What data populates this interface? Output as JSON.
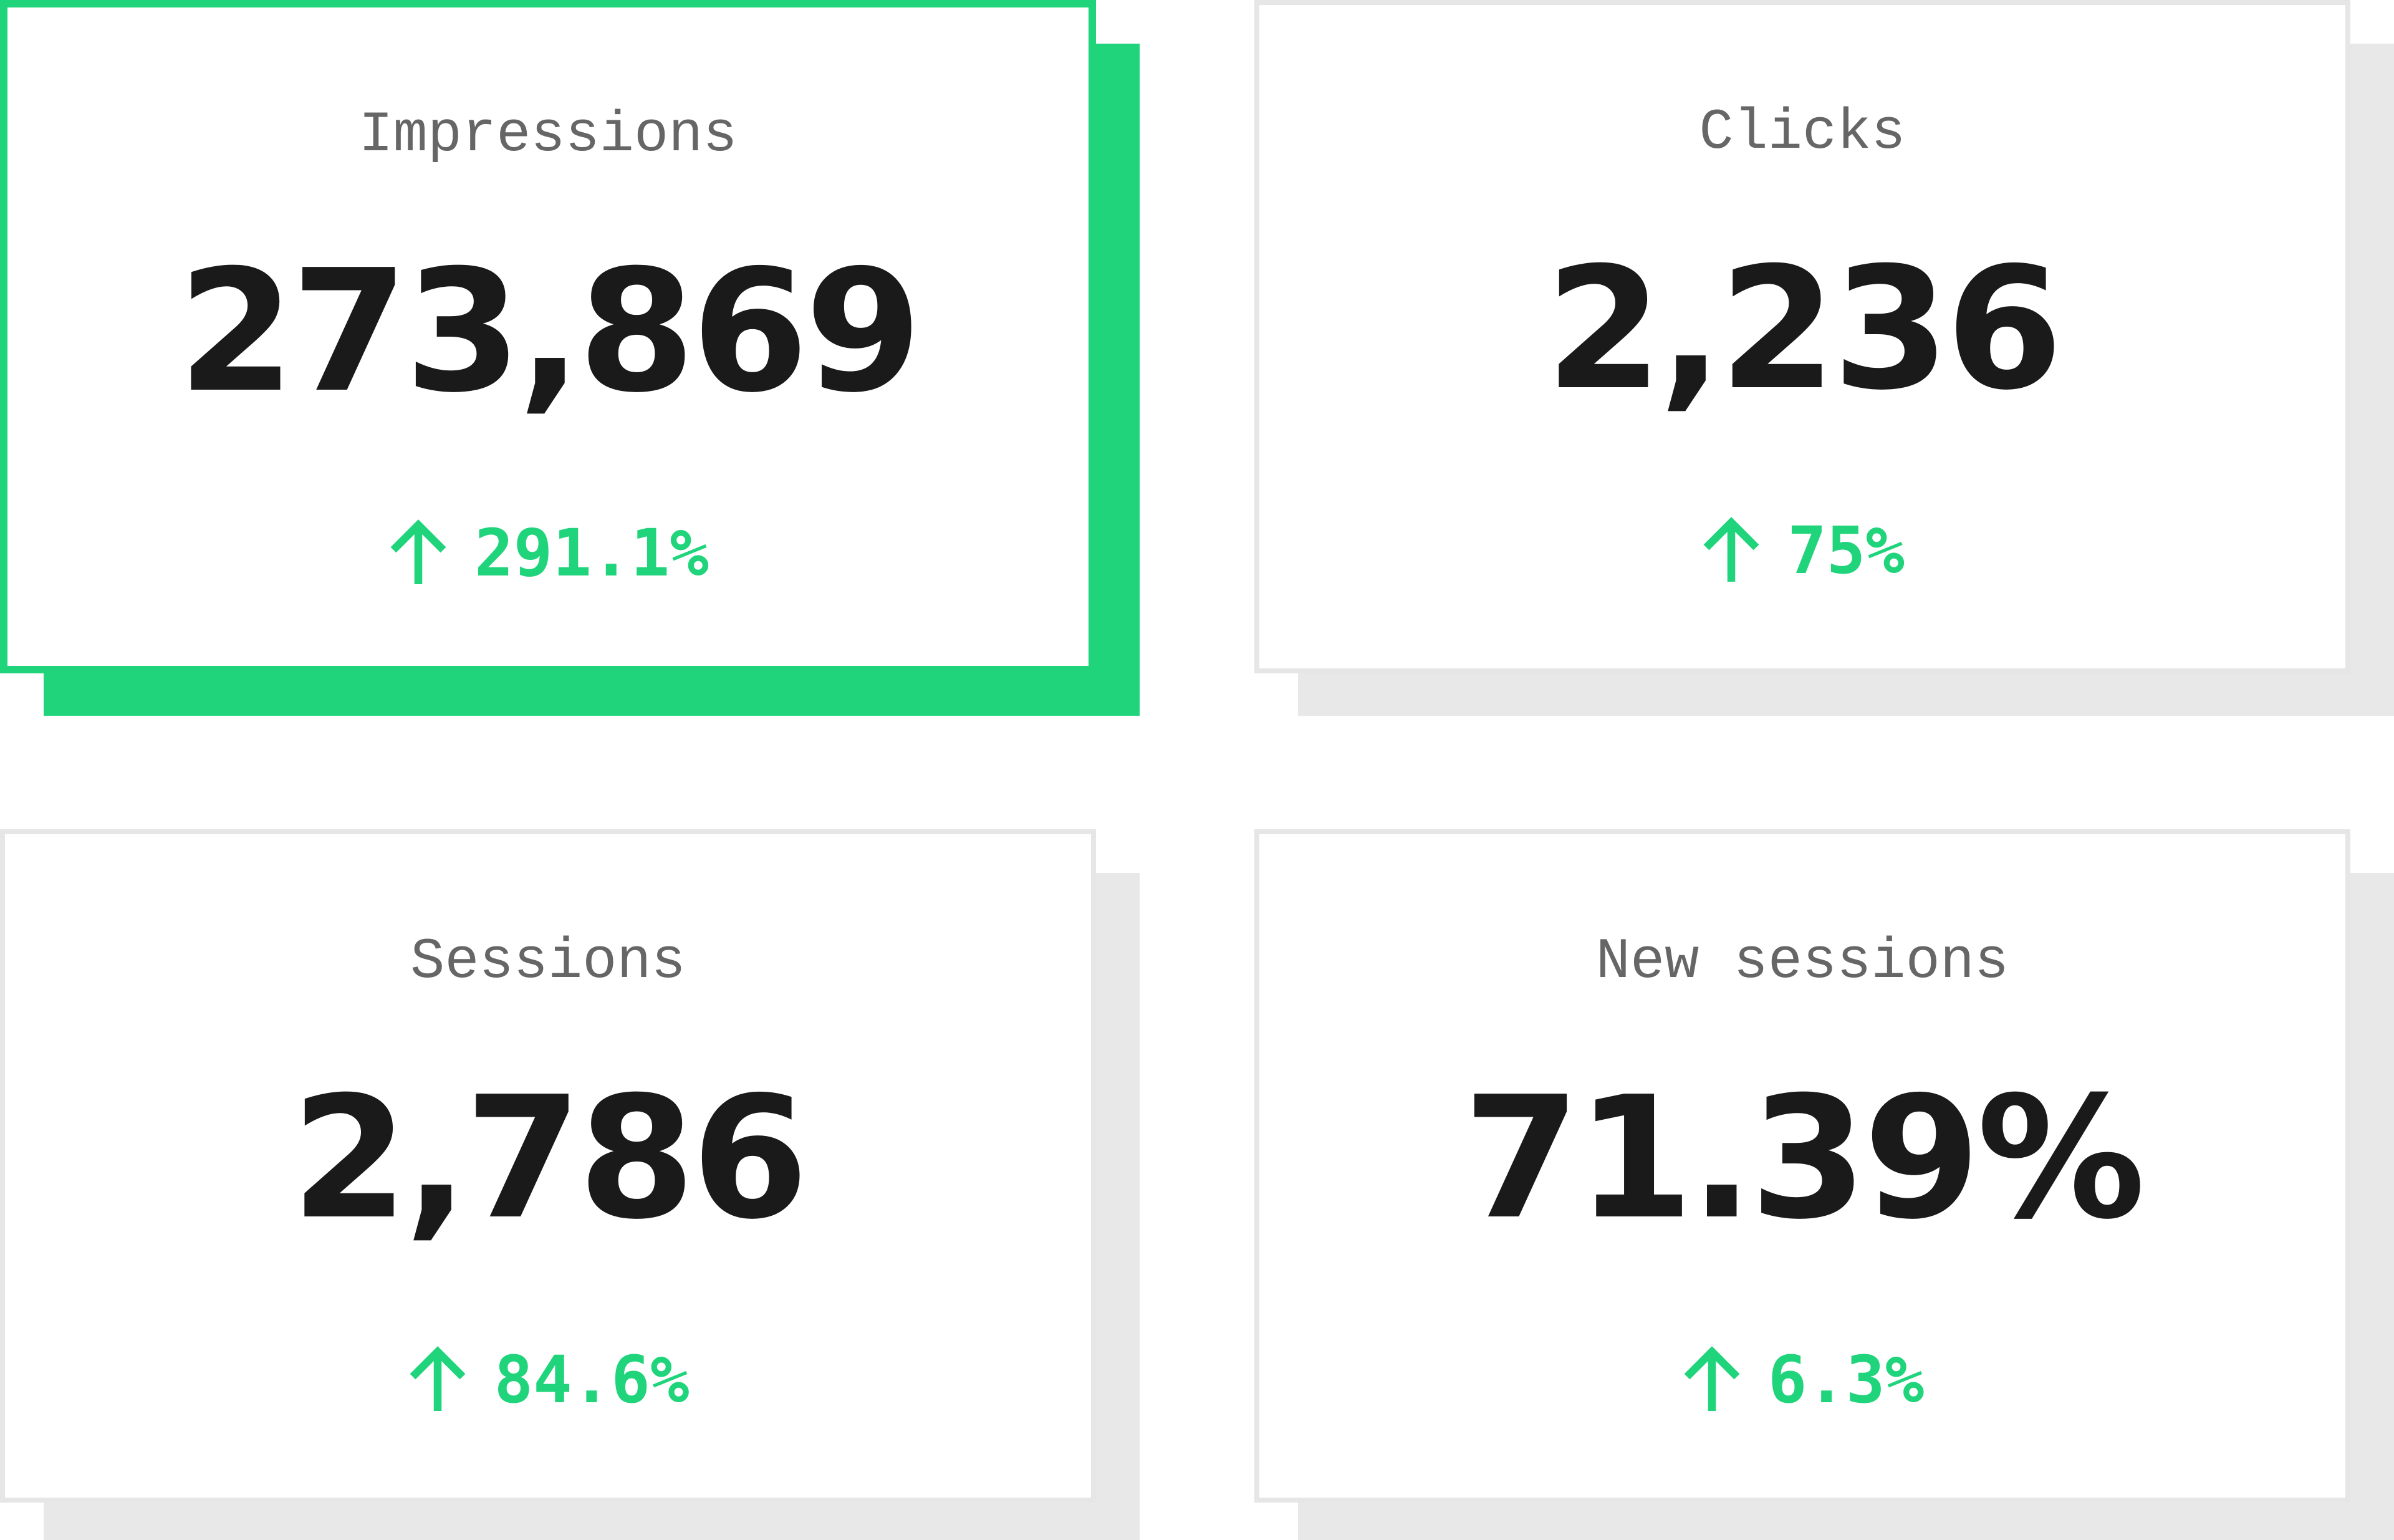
{
  "cards": [
    {
      "label": "Impressions",
      "value": "273,869",
      "change": "291.1%"
    },
    {
      "label": "Clicks",
      "value": "2,236",
      "change": "75%"
    },
    {
      "label": "Sessions",
      "value": "2,786",
      "change": "84.6%"
    },
    {
      "label": "New sessions",
      "value": "71.39%",
      "change": "6.3%"
    }
  ]
}
